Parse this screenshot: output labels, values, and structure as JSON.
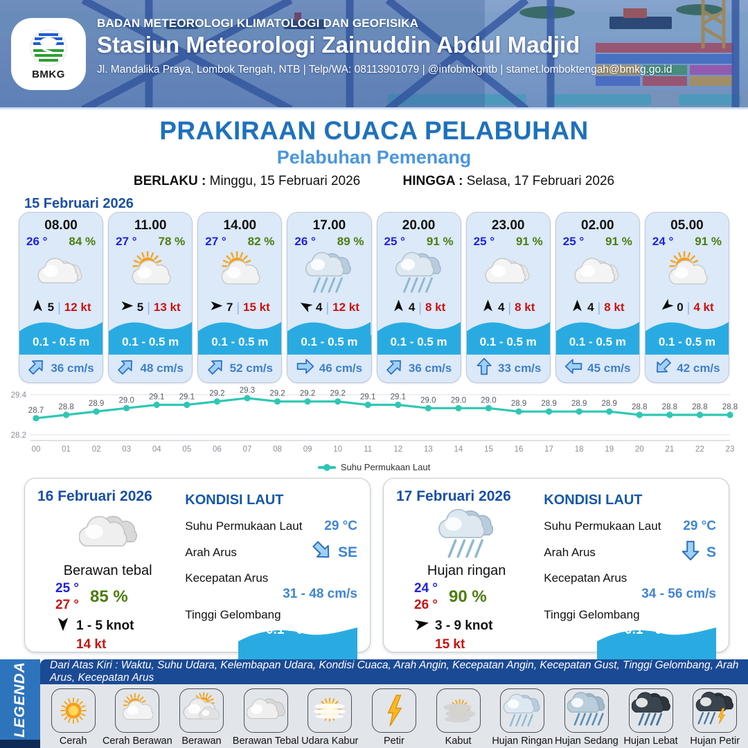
{
  "colors": {
    "title_blue": "#1d71bc",
    "subtitle_blue": "#4a96dd",
    "wave_blue": "#29abe2",
    "temp_blue": "#2222dd",
    "hum_green": "#4c7d10",
    "gust_red": "#cc1111",
    "teal": "#2fc7b2",
    "accent_dark": "#1b4a94",
    "accent_mid": "#2e74bd"
  },
  "header": {
    "agency": "BADAN METEOROLOGI KLIMATOLOGI DAN GEOFISIKA",
    "station": "Stasiun Meteorologi Zainuddin Abdul Madjid",
    "contact": "Jl. Mandalika Praya, Lombok Tengah, NTB | Telp/WA: 08113901079 | @infobmkgntb | stamet.lomboktengah@bmkg.go.id",
    "logo_label": "BMKG"
  },
  "title": {
    "main": "PRAKIRAAN CUACA PELABUHAN",
    "sub": "Pelabuhan Pemenang",
    "berlaku_label": "BERLAKU :",
    "berlaku_value": "Minggu, 15 Februari 2026",
    "hingga_label": "HINGGA :",
    "hingga_value": "Selasa, 17 Februari 2026"
  },
  "forecast_day1": {
    "date": "15 Februari 2026",
    "wind_divider": "|",
    "cards": [
      {
        "time": "08.00",
        "temp": "26 °",
        "humidity": "84 %",
        "icon": "berawan",
        "wind_deg": 0,
        "wind_speed": "5",
        "gust": "12 kt",
        "wave": "0.1 - 0.5 m",
        "current_deg": 45,
        "current_speed": "36 cm/s"
      },
      {
        "time": "11.00",
        "temp": "27 °",
        "humidity": "78 %",
        "icon": "cerah-berawan",
        "wind_deg": 90,
        "wind_speed": "5",
        "gust": "13 kt",
        "wave": "0.1 - 0.5 m",
        "current_deg": 45,
        "current_speed": "48 cm/s"
      },
      {
        "time": "14.00",
        "temp": "27 °",
        "humidity": "82 %",
        "icon": "cerah-berawan",
        "wind_deg": 90,
        "wind_speed": "7",
        "gust": "15 kt",
        "wave": "0.1 - 0.5 m",
        "current_deg": 45,
        "current_speed": "52 cm/s"
      },
      {
        "time": "17.00",
        "temp": "26 °",
        "humidity": "89 %",
        "icon": "hujan-ringan",
        "wind_deg": 300,
        "wind_speed": "4",
        "gust": "12 kt",
        "wave": "0.1 - 0.5 m",
        "current_deg": 90,
        "current_speed": "46 cm/s"
      },
      {
        "time": "20.00",
        "temp": "25 °",
        "humidity": "91 %",
        "icon": "hujan-ringan",
        "wind_deg": 0,
        "wind_speed": "4",
        "gust": "8 kt",
        "wave": "0.1 - 0.5 m",
        "current_deg": 45,
        "current_speed": "36 cm/s"
      },
      {
        "time": "23.00",
        "temp": "25 °",
        "humidity": "91 %",
        "icon": "berawan",
        "wind_deg": 0,
        "wind_speed": "4",
        "gust": "8 kt",
        "wave": "0.1 - 0.5 m",
        "current_deg": 0,
        "current_speed": "33 cm/s"
      },
      {
        "time": "02.00",
        "temp": "25 °",
        "humidity": "91 %",
        "icon": "berawan",
        "wind_deg": 0,
        "wind_speed": "4",
        "gust": "8 kt",
        "wave": "0.1 - 0.5 m",
        "current_deg": 270,
        "current_speed": "45 cm/s"
      },
      {
        "time": "05.00",
        "temp": "24 °",
        "humidity": "91 %",
        "icon": "cerah-berawan",
        "wind_deg": 230,
        "wind_speed": "0",
        "gust": "4 kt",
        "wave": "0.1 - 0.5 m",
        "current_deg": 225,
        "current_speed": "42 cm/s"
      }
    ]
  },
  "chart_data": {
    "type": "line",
    "series_label": "Suhu Permukaan Laut",
    "x": [
      "00",
      "01",
      "02",
      "03",
      "04",
      "05",
      "06",
      "07",
      "08",
      "09",
      "10",
      "11",
      "12",
      "13",
      "14",
      "15",
      "16",
      "17",
      "18",
      "19",
      "20",
      "21",
      "22",
      "23"
    ],
    "values": [
      28.7,
      28.8,
      28.9,
      29.0,
      29.1,
      29.1,
      29.2,
      29.3,
      29.2,
      29.2,
      29.2,
      29.1,
      29.1,
      29.0,
      29.0,
      29.0,
      28.9,
      28.9,
      28.9,
      28.9,
      28.8,
      28.8,
      28.8,
      28.8
    ],
    "ylim": [
      28.2,
      29.4
    ],
    "y_ticks": [
      "29.4",
      "28.2"
    ],
    "grid": true,
    "legend_position": "bottom"
  },
  "day_panels": [
    {
      "date": "16 Februari 2026",
      "icon": "berawan-tebal",
      "condition": "Berawan tebal",
      "temp_min": "25 °",
      "temp_max": "27 °",
      "humidity": "85 %",
      "wind_deg": 180,
      "wind_range": "1  - 5 knot",
      "gust": "14 kt",
      "sea": {
        "heading": "KONDISI LAUT",
        "sst_label": "Suhu Permukaan Laut",
        "sst_value": "29 °C",
        "current_dir_label": "Arah Arus",
        "current_dir": "SE",
        "current_dir_deg": 135,
        "current_speed_label": "Kecepatan Arus",
        "current_speed": "31  - 48 cm/s",
        "wave_label": "Tinggi Gelombang",
        "wave_value": "0.1 - 0.5 m"
      }
    },
    {
      "date": "17 Februari 2026",
      "icon": "hujan-ringan",
      "condition": "Hujan ringan",
      "temp_min": "24 °",
      "temp_max": "26 °",
      "humidity": "90 %",
      "wind_deg": 80,
      "wind_range": "3  - 9 knot",
      "gust": "15 kt",
      "sea": {
        "heading": "KONDISI LAUT",
        "sst_label": "Suhu Permukaan Laut",
        "sst_value": "29 °C",
        "current_dir_label": "Arah Arus",
        "current_dir": "S",
        "current_dir_deg": 180,
        "current_speed_label": "Kecepatan Arus",
        "current_speed": "34  - 56 cm/s",
        "wave_label": "Tinggi Gelombang",
        "wave_value": "0.1 - 0.5 m"
      }
    }
  ],
  "legend": {
    "side_label": "LEGENDA",
    "header_text": "Dari Atas Kiri : Waktu, Suhu Udara, Kelembapan Udara, Kondisi Cuaca, Arah Angin, Kecepatan Angin, Kecepatan Gust, Tinggi Gelombang, Arah Arus, Kecepatan Arus",
    "items": [
      {
        "label": "Cerah",
        "icon": "cerah"
      },
      {
        "label": "Cerah Berawan",
        "icon": "cerah-berawan"
      },
      {
        "label": "Berawan",
        "icon": "berawan-sun"
      },
      {
        "label": "Berawan Tebal",
        "icon": "berawan-tebal"
      },
      {
        "label": "Udara Kabur",
        "icon": "udara-kabur"
      },
      {
        "label": "Petir",
        "icon": "petir"
      },
      {
        "label": "Kabut",
        "icon": "kabut"
      },
      {
        "label": "Hujan Ringan",
        "icon": "hujan-ringan"
      },
      {
        "label": "Hujan Sedang",
        "icon": "hujan-sedang"
      },
      {
        "label": "Hujan Lebat",
        "icon": "hujan-lebat"
      },
      {
        "label": "Hujan Petir",
        "icon": "hujan-petir"
      }
    ]
  }
}
